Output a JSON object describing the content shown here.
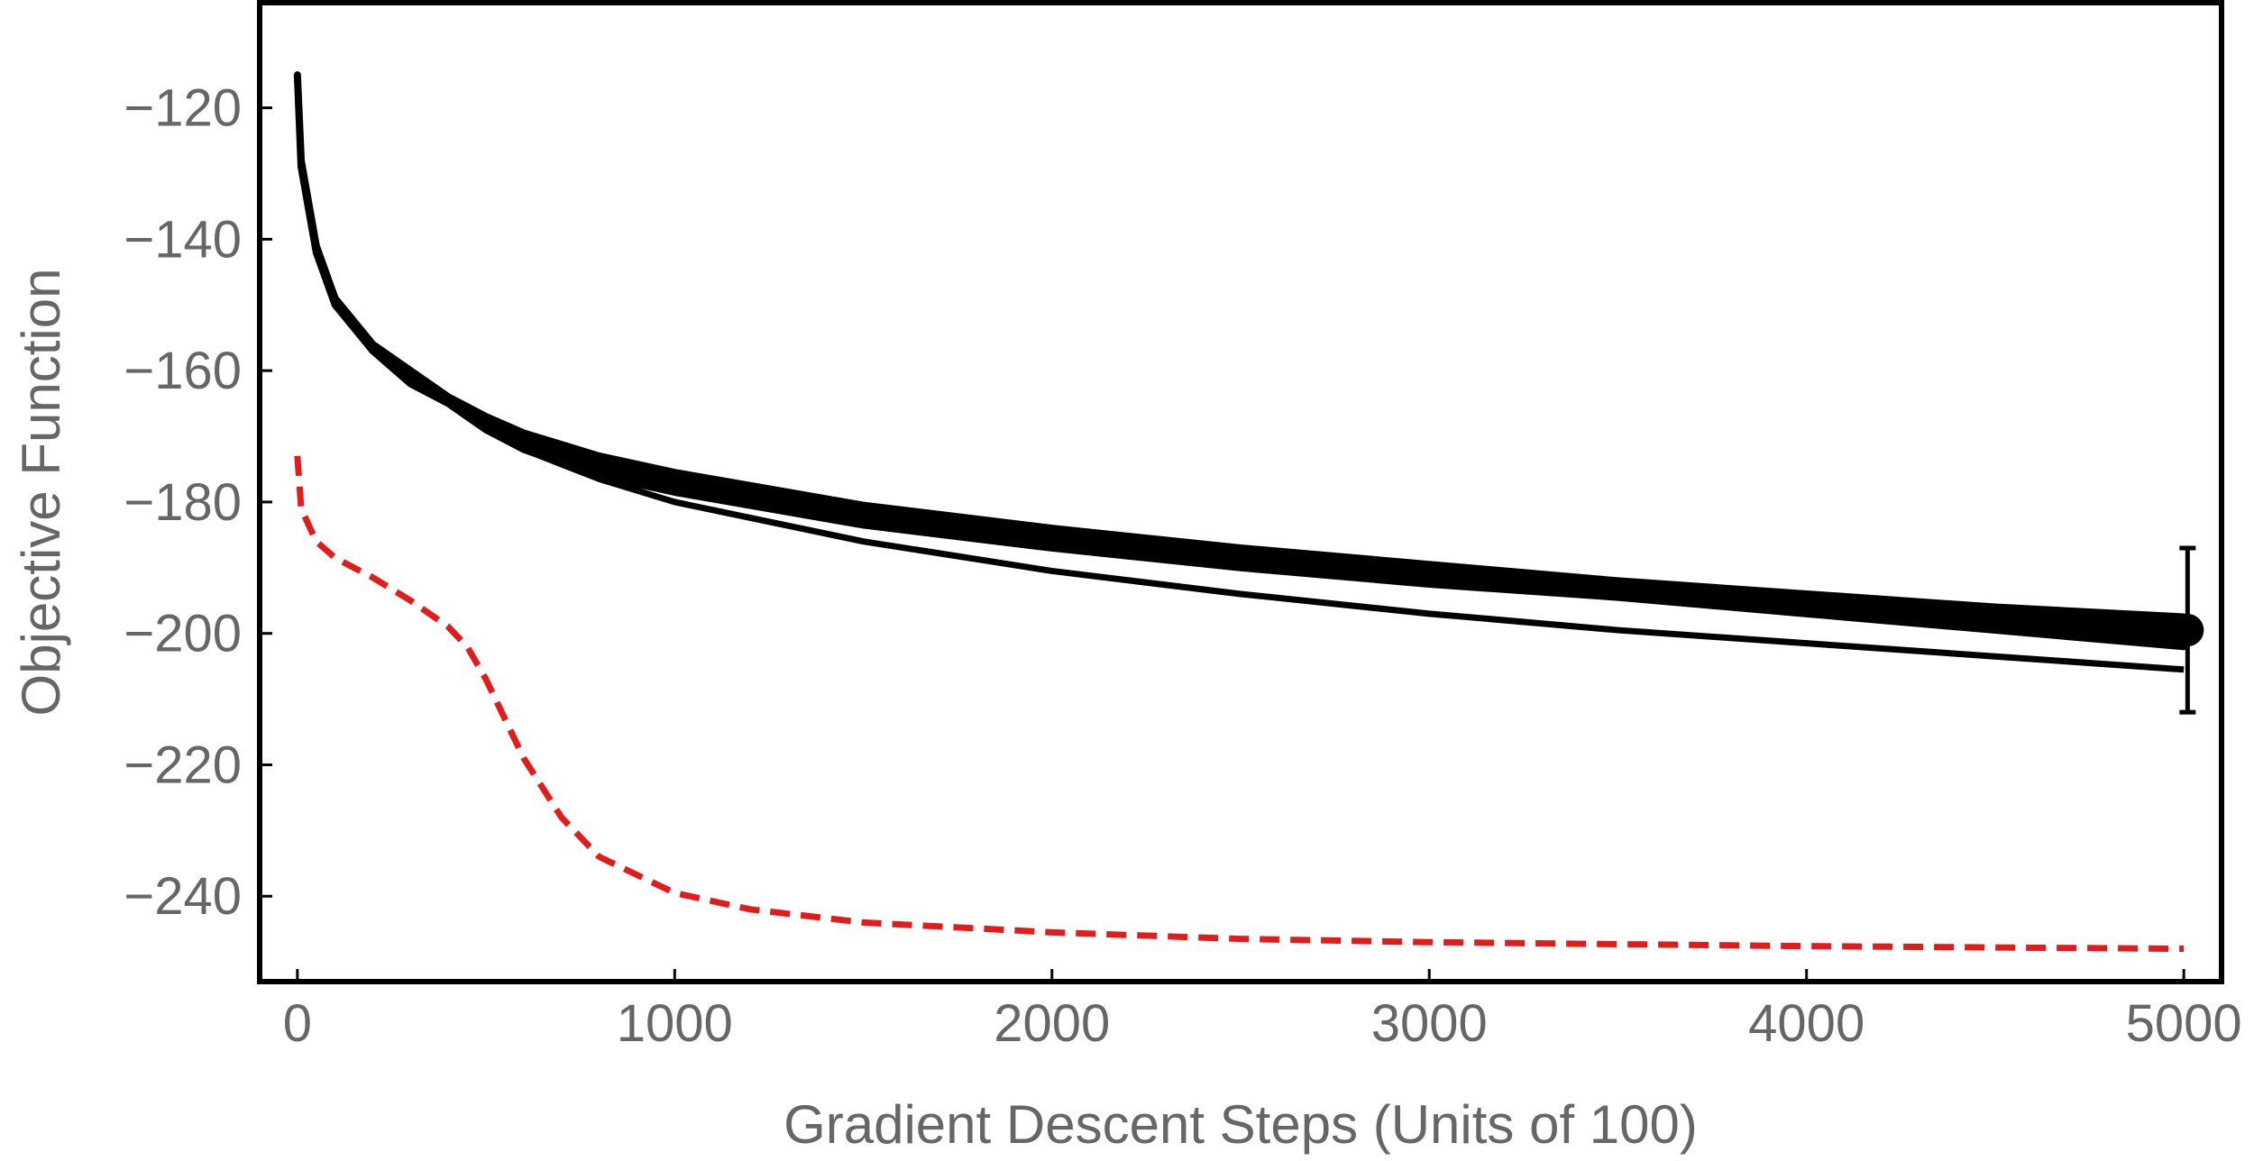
{
  "chart_data": {
    "type": "line",
    "title": "",
    "xlabel": "Gradient Descent Steps (Units of 100)",
    "ylabel": "Objective Function",
    "xlim": [
      -100,
      5100
    ],
    "ylim": [
      -253,
      -104
    ],
    "xticks": [
      0,
      1000,
      2000,
      3000,
      4000,
      5000
    ],
    "yticks": [
      -120,
      -140,
      -160,
      -180,
      -200,
      -220,
      -240
    ],
    "xtick_labels": [
      "0",
      "1000",
      "2000",
      "3000",
      "4000",
      "5000"
    ],
    "ytick_labels": [
      "−120",
      "−140",
      "−160",
      "−180",
      "−200",
      "−220",
      "−240"
    ],
    "grid": false,
    "legend": "none",
    "series": [
      {
        "style": "black band (spread of runs)",
        "color": "#000000",
        "x": [
          0,
          10,
          50,
          100,
          200,
          300,
          400,
          500,
          600,
          800,
          1000,
          1500,
          2000,
          2500,
          3000,
          3500,
          4000,
          4500,
          5000
        ],
        "upper": [
          -115,
          -128,
          -141,
          -149,
          -156,
          -160,
          -164,
          -167,
          -169.5,
          -173,
          -175.5,
          -180.5,
          -184,
          -187,
          -189.5,
          -192,
          -194,
          -196,
          -197.5
        ],
        "lower": [
          -115,
          -129,
          -142,
          -150,
          -157,
          -162,
          -165,
          -169,
          -172,
          -176,
          -178.5,
          -183.5,
          -187,
          -190,
          -192.5,
          -194.5,
          -197,
          -199.5,
          -202
        ]
      },
      {
        "style": "black solid",
        "color": "#000000",
        "x": [
          0,
          10,
          50,
          100,
          200,
          300,
          400,
          500,
          600,
          800,
          1000,
          1500,
          2000,
          2500,
          3000,
          3500,
          4000,
          4500,
          5000
        ],
        "y": [
          -115,
          -129,
          -142,
          -150,
          -157,
          -161,
          -165,
          -169,
          -172,
          -176.5,
          -180,
          -186,
          -190.5,
          -194,
          -197,
          -199.5,
          -201.5,
          -203.5,
          -205.5
        ]
      },
      {
        "style": "red dashed",
        "color": "#e21b1b",
        "x": [
          0,
          10,
          50,
          100,
          200,
          300,
          400,
          450,
          500,
          600,
          700,
          800,
          1000,
          1200,
          1500,
          2000,
          2500,
          3000,
          3500,
          4000,
          4500,
          5000
        ],
        "y": [
          -173,
          -181,
          -186,
          -188.5,
          -191.5,
          -195,
          -199,
          -202,
          -207,
          -219,
          -228,
          -234,
          -239.5,
          -242,
          -244,
          -245.5,
          -246.5,
          -247,
          -247.3,
          -247.6,
          -247.8,
          -248
        ]
      }
    ],
    "endpoint_marker": {
      "x": 5010,
      "y": -199.5,
      "error_low": -212,
      "error_high": -187
    }
  }
}
